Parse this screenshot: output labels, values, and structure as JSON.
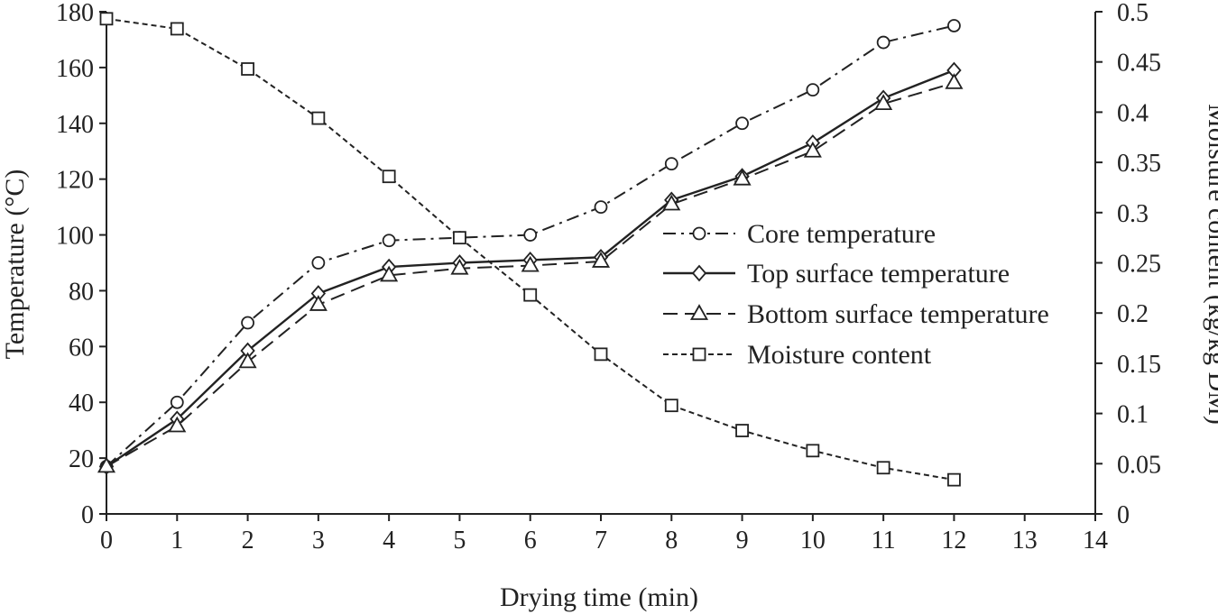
{
  "chart_data": {
    "type": "line",
    "title": "",
    "xlabel": "Drying time (min)",
    "ylabel": "Temperature (°C)",
    "y2label": "Moisture content (kg/kg DM)",
    "xlim": [
      0,
      14
    ],
    "ylim": [
      0,
      180
    ],
    "y2lim": [
      0,
      0.5
    ],
    "xticks": [
      "0",
      "1",
      "2",
      "3",
      "4",
      "5",
      "6",
      "7",
      "8",
      "9",
      "10",
      "11",
      "12",
      "13",
      "14"
    ],
    "yticks": [
      "0",
      "20",
      "40",
      "60",
      "80",
      "100",
      "120",
      "140",
      "160",
      "180"
    ],
    "y2ticks": [
      "0",
      "0.05",
      "0.1",
      "0.15",
      "0.2",
      "0.25",
      "0.3",
      "0.35",
      "0.4",
      "0.45",
      "0.5"
    ],
    "grid": false,
    "legend_position": "center-right",
    "x": [
      0,
      1,
      2,
      3,
      4,
      5,
      6,
      7,
      8,
      9,
      10,
      11,
      12
    ],
    "series": [
      {
        "name": "Core temperature",
        "axis": "left",
        "marker": "circle",
        "dash": "dash-dot",
        "values": [
          17,
          40,
          68.5,
          90,
          98,
          99,
          100,
          110,
          125.5,
          140,
          152,
          169,
          175
        ]
      },
      {
        "name": "Top surface temperature",
        "axis": "left",
        "marker": "diamond",
        "dash": "solid",
        "values": [
          17,
          34,
          58.5,
          79,
          88.5,
          90,
          91,
          92,
          112.5,
          121,
          133,
          149,
          159
        ]
      },
      {
        "name": "Bottom surface temperature",
        "axis": "left",
        "marker": "triangle",
        "dash": "long-dash",
        "values": [
          17,
          31.5,
          54.5,
          75,
          85.5,
          88,
          89,
          90.5,
          111,
          120,
          130,
          147,
          154.5
        ]
      },
      {
        "name": "Moisture content",
        "axis": "right",
        "marker": "square",
        "dash": "short-dash",
        "values": [
          0.493,
          0.483,
          0.443,
          0.394,
          0.336,
          0.275,
          0.218,
          0.159,
          0.108,
          0.083,
          0.063,
          0.046,
          0.034
        ]
      }
    ]
  }
}
